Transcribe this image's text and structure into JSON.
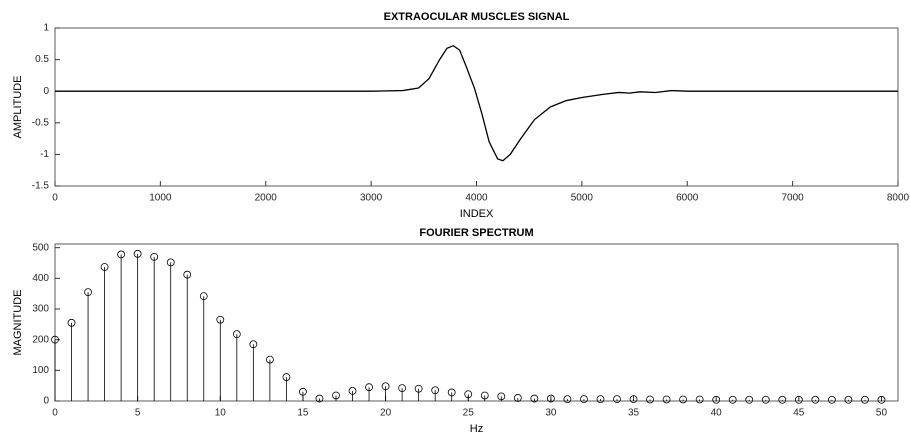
{
  "chart_data": [
    {
      "type": "line",
      "title": "EXTRAOCULAR MUSCLES SIGNAL",
      "x_label": "INDEX",
      "y_label": "AMPLITUDE",
      "x": [
        0,
        1000,
        2000,
        3000,
        3300,
        3450,
        3550,
        3650,
        3720,
        3780,
        3840,
        3900,
        3980,
        4050,
        4120,
        4200,
        4250,
        4320,
        4420,
        4550,
        4700,
        4850,
        5000,
        5200,
        5350,
        5450,
        5550,
        5700,
        5850,
        6000,
        6500,
        7000,
        8000
      ],
      "series": [
        {
          "color": "#000000",
          "values": [
            0,
            0,
            0,
            0,
            0.01,
            0.05,
            0.2,
            0.5,
            0.68,
            0.72,
            0.65,
            0.4,
            0.05,
            -0.35,
            -0.8,
            -1.07,
            -1.1,
            -1.0,
            -0.75,
            -0.45,
            -0.25,
            -0.15,
            -0.1,
            -0.05,
            -0.02,
            -0.03,
            -0.01,
            -0.02,
            0.01,
            0,
            0,
            0,
            0
          ]
        }
      ],
      "xlim": [
        0,
        8000
      ],
      "ylim": [
        -1.5,
        1
      ],
      "xticks": [
        0,
        1000,
        2000,
        3000,
        4000,
        5000,
        6000,
        7000,
        8000
      ],
      "yticks": [
        -1.5,
        -1,
        -0.5,
        0,
        0.5,
        1
      ]
    },
    {
      "type": "stem",
      "title": "FOURIER SPECTRUM",
      "x_label": "Hz",
      "y_label": "MAGNITUDE",
      "x": [
        0,
        1,
        2,
        3,
        4,
        5,
        6,
        7,
        8,
        9,
        10,
        11,
        12,
        13,
        14,
        15,
        16,
        17,
        18,
        19,
        20,
        21,
        22,
        23,
        24,
        25,
        26,
        27,
        28,
        29,
        30,
        31,
        32,
        33,
        34,
        35,
        36,
        37,
        38,
        39,
        40,
        41,
        42,
        43,
        44,
        45,
        46,
        47,
        48,
        49,
        50
      ],
      "series": [
        {
          "color": "#000000",
          "values": [
            200,
            255,
            355,
            437,
            478,
            480,
            470,
            452,
            412,
            342,
            265,
            218,
            185,
            135,
            78,
            30,
            8,
            18,
            33,
            45,
            48,
            42,
            40,
            35,
            28,
            22,
            18,
            15,
            10,
            8,
            8,
            6,
            6,
            6,
            6,
            6,
            5,
            5,
            5,
            5,
            4,
            4,
            4,
            4,
            4,
            4,
            4,
            4,
            4,
            4,
            4
          ]
        }
      ],
      "xlim": [
        0,
        51
      ],
      "ylim": [
        0,
        512
      ],
      "xticks": [
        0,
        5,
        10,
        15,
        20,
        25,
        30,
        35,
        40,
        45,
        50
      ],
      "yticks": [
        0,
        100,
        200,
        300,
        400,
        500
      ]
    }
  ]
}
